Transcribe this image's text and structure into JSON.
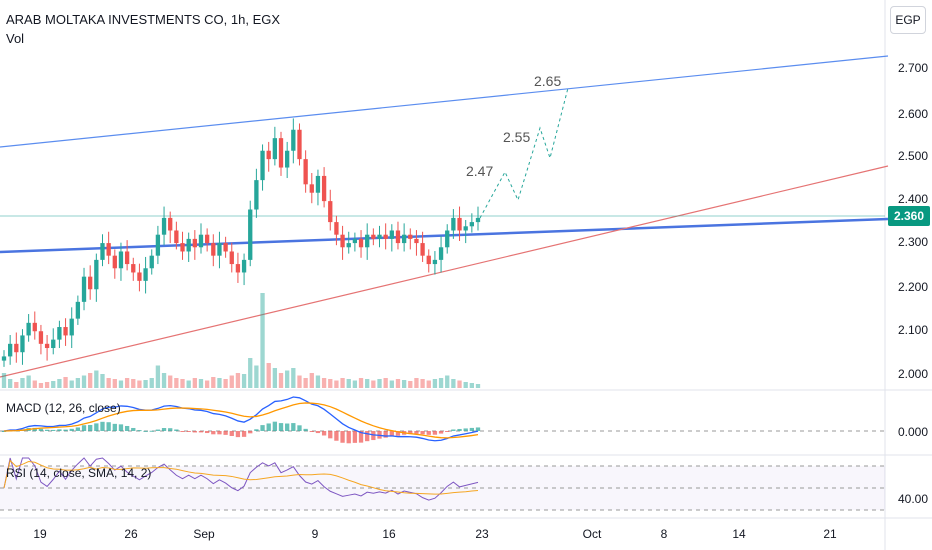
{
  "header": {
    "title": "ARAB MOLTAKA INVESTMENTS CO, 1h, EGX",
    "volume_label": "Vol",
    "currency": "EGP"
  },
  "last_price_label": "2.360",
  "colors": {
    "up": "#26a69a",
    "down": "#ef5350",
    "channel_top": "#5b8def",
    "support": "#4a74e0",
    "rising": "#e57373",
    "macd": "#2962ff",
    "signal": "#ff9800",
    "rsi": "#7e57c2",
    "rsi_ma": "#f5a623",
    "projection": "#26a69a",
    "last_price_bg": "#089981"
  },
  "chart_data": [
    {
      "type": "candlestick",
      "pane": "price",
      "title": "ARAB MOLTAKA INVESTMENTS CO, 1h, EGX",
      "ylim": [
        1.95,
        2.76
      ],
      "y_ticks": [
        "2.700",
        "2.600",
        "2.500",
        "2.400",
        "2.300",
        "2.200",
        "2.100",
        "2.000"
      ],
      "x_ticks": [
        "19",
        "26",
        "Sep",
        "9",
        "16",
        "23",
        "Oct",
        "8",
        "14",
        "21"
      ],
      "last_price": 2.36,
      "closes": [
        2.03,
        2.06,
        2.04,
        2.08,
        2.11,
        2.09,
        2.06,
        2.05,
        2.07,
        2.1,
        2.08,
        2.12,
        2.16,
        2.22,
        2.19,
        2.26,
        2.3,
        2.27,
        2.24,
        2.28,
        2.25,
        2.23,
        2.21,
        2.24,
        2.27,
        2.32,
        2.36,
        2.33,
        2.3,
        2.28,
        2.31,
        2.29,
        2.32,
        2.3,
        2.27,
        2.3,
        2.28,
        2.25,
        2.23,
        2.26,
        2.38,
        2.45,
        2.52,
        2.5,
        2.55,
        2.48,
        2.52,
        2.57,
        2.5,
        2.44,
        2.42,
        2.46,
        2.4,
        2.35,
        2.32,
        2.29,
        2.3,
        2.31,
        2.29,
        2.32,
        2.31,
        2.32,
        2.31,
        2.33,
        2.3,
        2.32,
        2.31,
        2.3,
        2.27,
        2.25,
        2.26,
        2.29,
        2.33,
        2.36,
        2.33,
        2.34,
        2.35,
        2.36
      ],
      "volume": [
        30,
        18,
        12,
        20,
        25,
        15,
        10,
        12,
        14,
        18,
        22,
        15,
        20,
        25,
        30,
        35,
        28,
        20,
        18,
        15,
        20,
        18,
        15,
        16,
        20,
        45,
        30,
        25,
        20,
        18,
        15,
        20,
        18,
        15,
        22,
        20,
        18,
        25,
        30,
        28,
        60,
        45,
        190,
        50,
        40,
        30,
        35,
        40,
        25,
        20,
        30,
        25,
        20,
        18,
        15,
        20,
        18,
        15,
        20,
        18,
        15,
        18,
        20,
        15,
        18,
        16,
        14,
        20,
        18,
        15,
        18,
        20,
        25,
        18,
        15,
        12,
        10,
        8
      ],
      "annotations": [
        "2.47",
        "2.55",
        "2.65"
      ]
    },
    {
      "type": "line",
      "pane": "macd",
      "title": "MACD (12, 26, close)",
      "y_ticks": [
        "0.000"
      ],
      "series": [
        {
          "name": "MACD"
        },
        {
          "name": "Signal"
        }
      ]
    },
    {
      "type": "line",
      "pane": "rsi",
      "title": "RSI (14, close, SMA, 14, 2)",
      "ylim": [
        20,
        90
      ],
      "y_ticks": [
        "40.00"
      ],
      "series": [
        {
          "name": "RSI"
        },
        {
          "name": "RSI-based MA"
        }
      ]
    }
  ]
}
